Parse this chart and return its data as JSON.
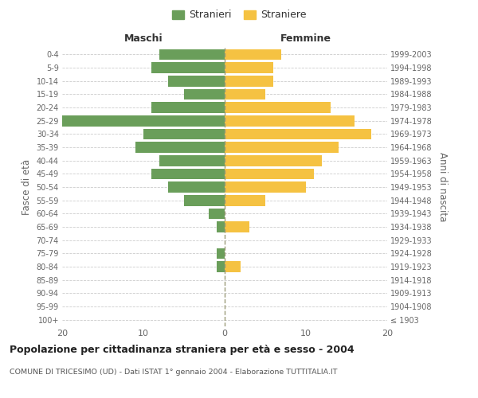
{
  "age_groups": [
    "100+",
    "95-99",
    "90-94",
    "85-89",
    "80-84",
    "75-79",
    "70-74",
    "65-69",
    "60-64",
    "55-59",
    "50-54",
    "45-49",
    "40-44",
    "35-39",
    "30-34",
    "25-29",
    "20-24",
    "15-19",
    "10-14",
    "5-9",
    "0-4"
  ],
  "birth_years": [
    "≤ 1903",
    "1904-1908",
    "1909-1913",
    "1914-1918",
    "1919-1923",
    "1924-1928",
    "1929-1933",
    "1934-1938",
    "1939-1943",
    "1944-1948",
    "1949-1953",
    "1954-1958",
    "1959-1963",
    "1964-1968",
    "1969-1973",
    "1974-1978",
    "1979-1983",
    "1984-1988",
    "1989-1993",
    "1994-1998",
    "1999-2003"
  ],
  "males": [
    0,
    0,
    0,
    0,
    1,
    1,
    0,
    1,
    2,
    5,
    7,
    9,
    8,
    11,
    10,
    20,
    9,
    5,
    7,
    9,
    8
  ],
  "females": [
    0,
    0,
    0,
    0,
    2,
    0,
    0,
    3,
    0,
    5,
    10,
    11,
    12,
    14,
    18,
    16,
    13,
    5,
    6,
    6,
    7
  ],
  "male_color": "#6a9e5a",
  "female_color": "#f5c242",
  "title": "Popolazione per cittadinanza straniera per età e sesso - 2004",
  "subtitle": "COMUNE DI TRICESIMO (UD) - Dati ISTAT 1° gennaio 2004 - Elaborazione TUTTITALIA.IT",
  "xlabel_left": "Maschi",
  "xlabel_right": "Femmine",
  "ylabel_left": "Fasce di età",
  "ylabel_right": "Anni di nascita",
  "xlim": 20,
  "legend_male": "Stranieri",
  "legend_female": "Straniere",
  "bg_color": "#ffffff",
  "grid_color": "#cccccc",
  "text_color": "#666666"
}
